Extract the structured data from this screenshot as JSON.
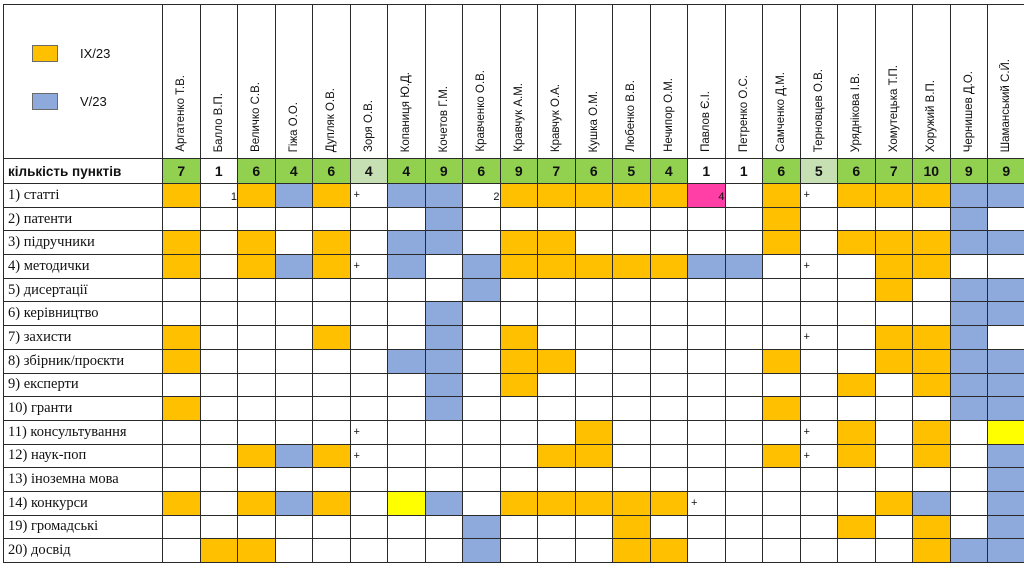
{
  "legend": [
    {
      "label": "IX/23",
      "color": "#ffc000"
    },
    {
      "label": "V/23",
      "color": "#8ea9db"
    }
  ],
  "colors": {
    "orange": "#ffc000",
    "blue": "#8ea9db",
    "pink": "#ff3fa6",
    "yellow": "#ffff00",
    "green": "#92d050",
    "lightgreen": "#c6e0b4",
    "white": "#ffffff"
  },
  "count_label": "кількість пунктів",
  "people": [
    {
      "name": "Аргатенко Т.В.",
      "count": "7",
      "count_color": "green"
    },
    {
      "name": "Балло В.П.",
      "count": "1",
      "count_color": "white"
    },
    {
      "name": "Величко С.В.",
      "count": "6",
      "count_color": "green"
    },
    {
      "name": "Гіжа О.О.",
      "count": "4",
      "count_color": "green"
    },
    {
      "name": "Дупляк О.В.",
      "count": "6",
      "count_color": "green"
    },
    {
      "name": "Зоря О.В.",
      "count": "4",
      "count_color": "lightgreen"
    },
    {
      "name": "Копаниця Ю.Д.",
      "count": "4",
      "count_color": "green"
    },
    {
      "name": "Кочетов Г.М.",
      "count": "9",
      "count_color": "green"
    },
    {
      "name": "Кравченко О.В.",
      "count": "6",
      "count_color": "green"
    },
    {
      "name": "Кравчук А.М.",
      "count": "9",
      "count_color": "green"
    },
    {
      "name": "Кравчук О.А.",
      "count": "7",
      "count_color": "green"
    },
    {
      "name": "Кушка О.М.",
      "count": "6",
      "count_color": "green"
    },
    {
      "name": "Любенко В.В.",
      "count": "5",
      "count_color": "green"
    },
    {
      "name": "Нечипор О.М.",
      "count": "4",
      "count_color": "green"
    },
    {
      "name": "Павлов Є.І.",
      "count": "1",
      "count_color": "white"
    },
    {
      "name": "Петренко О.С.",
      "count": "1",
      "count_color": "white"
    },
    {
      "name": "Самченко Д.М.",
      "count": "6",
      "count_color": "green"
    },
    {
      "name": "Терновцев О.В.",
      "count": "5",
      "count_color": "lightgreen"
    },
    {
      "name": "Уряднікова І.В.",
      "count": "6",
      "count_color": "green"
    },
    {
      "name": "Хомутецька Т.П.",
      "count": "7",
      "count_color": "green"
    },
    {
      "name": "Хоружий В.П.",
      "count": "10",
      "count_color": "green"
    },
    {
      "name": "Чернишев Д.О.",
      "count": "9",
      "count_color": "green"
    },
    {
      "name": "Шаманський С.Й.",
      "count": "9",
      "count_color": "green"
    }
  ],
  "rows": [
    {
      "label": "1) статті",
      "cells": [
        "O",
        "1",
        "O",
        "B",
        "O",
        "+",
        "B",
        "B",
        "2",
        "O",
        "O",
        "O",
        "O",
        "O",
        "4P",
        "",
        "O",
        "+",
        "O",
        "O",
        "O",
        "B",
        "B"
      ]
    },
    {
      "label": "2) патенти",
      "cells": [
        "",
        "",
        "",
        "",
        "",
        "",
        "",
        "B",
        "",
        "",
        "",
        "",
        "",
        "",
        "",
        "",
        "O",
        "",
        "",
        "",
        "",
        "B",
        ""
      ]
    },
    {
      "label": "3) підручники",
      "cells": [
        "O",
        "",
        "O",
        "",
        "O",
        "",
        "B",
        "B",
        "",
        "O",
        "O",
        "",
        "",
        "",
        "",
        "",
        "O",
        "",
        "O",
        "O",
        "O",
        "B",
        "B"
      ]
    },
    {
      "label": "4) методички",
      "cells": [
        "O",
        "",
        "O",
        "B",
        "O",
        "+",
        "B",
        "",
        "B",
        "O",
        "O",
        "O",
        "O",
        "O",
        "B",
        "B",
        "",
        "+",
        "",
        "O",
        "O",
        "",
        ""
      ]
    },
    {
      "label": "5) дисертації",
      "cells": [
        "",
        "",
        "",
        "",
        "",
        "",
        "",
        "",
        "B",
        "",
        "",
        "",
        "",
        "",
        "",
        "",
        "",
        "",
        "",
        "O",
        "",
        "B",
        "B"
      ]
    },
    {
      "label": "6) керівництво",
      "cells": [
        "",
        "",
        "",
        "",
        "",
        "",
        "",
        "B",
        "",
        "",
        "",
        "",
        "",
        "",
        "",
        "",
        "",
        "",
        "",
        "",
        "",
        "B",
        "B"
      ]
    },
    {
      "label": "7) захисти",
      "cells": [
        "O",
        "",
        "",
        "",
        "O",
        "",
        "",
        "B",
        "",
        "O",
        "",
        "",
        "",
        "",
        "",
        "",
        "",
        "+",
        "",
        "O",
        "O",
        "B",
        ""
      ]
    },
    {
      "label": "8) збірник/проєкти",
      "cells": [
        "O",
        "",
        "",
        "",
        "",
        "",
        "B",
        "B",
        "",
        "O",
        "O",
        "",
        "",
        "",
        "",
        "",
        "O",
        "",
        "",
        "O",
        "O",
        "B",
        "B"
      ]
    },
    {
      "label": "9) експерти",
      "cells": [
        "",
        "",
        "",
        "",
        "",
        "",
        "",
        "B",
        "",
        "O",
        "",
        "",
        "",
        "",
        "",
        "",
        "",
        "",
        "O",
        "",
        "O",
        "B",
        "B"
      ]
    },
    {
      "label": "10) гранти",
      "cells": [
        "O",
        "",
        "",
        "",
        "",
        "",
        "",
        "B",
        "",
        "",
        "",
        "",
        "",
        "",
        "",
        "",
        "O",
        "",
        "",
        "",
        "",
        "B",
        "B"
      ]
    },
    {
      "label": "11) консультування",
      "cells": [
        "",
        "",
        "",
        "",
        "",
        "+",
        "",
        "",
        "",
        "",
        "",
        "O",
        "",
        "",
        "",
        "",
        "",
        "+",
        "O",
        "",
        "O",
        "",
        "Y"
      ]
    },
    {
      "label": "12) наук-поп",
      "cells": [
        "",
        "",
        "O",
        "B",
        "O",
        "+",
        "",
        "",
        "",
        "",
        "O",
        "O",
        "",
        "",
        "",
        "",
        "O",
        "+",
        "O",
        "",
        "O",
        "",
        "B"
      ]
    },
    {
      "label": "13) іноземна мова",
      "cells": [
        "",
        "",
        "",
        "",
        "",
        "",
        "",
        "",
        "",
        "",
        "",
        "",
        "",
        "",
        "",
        "",
        "",
        "",
        "",
        "",
        "",
        "",
        "B"
      ]
    },
    {
      "label": "14) конкурси",
      "cells": [
        "O",
        "",
        "O",
        "B",
        "O",
        "",
        "Y",
        "B",
        "",
        "O",
        "O",
        "O",
        "O",
        "O",
        "+",
        "",
        "",
        "",
        "",
        "O",
        "B",
        "",
        "B"
      ]
    },
    {
      "label": "19) громадські",
      "cells": [
        "",
        "",
        "",
        "",
        "",
        "",
        "",
        "",
        "B",
        "",
        "",
        "",
        "O",
        "",
        "",
        "",
        "",
        "",
        "O",
        "",
        "O",
        "",
        "B"
      ]
    },
    {
      "label": "20) досвід",
      "cells": [
        "",
        "O",
        "O",
        "",
        "",
        "",
        "",
        "",
        "B",
        "",
        "",
        "",
        "O",
        "O",
        "",
        "",
        "",
        "",
        "",
        "",
        "O",
        "B",
        "B"
      ]
    }
  ]
}
